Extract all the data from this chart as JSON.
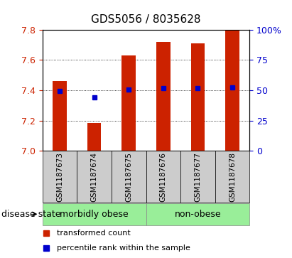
{
  "title": "GDS5056 / 8035628",
  "samples": [
    "GSM1187673",
    "GSM1187674",
    "GSM1187675",
    "GSM1187676",
    "GSM1187677",
    "GSM1187678"
  ],
  "bar_values": [
    7.46,
    7.185,
    7.63,
    7.72,
    7.71,
    7.8
  ],
  "bar_baseline": 7.0,
  "percentile_values": [
    7.395,
    7.355,
    7.405,
    7.415,
    7.415,
    7.42
  ],
  "bar_color": "#cc2200",
  "percentile_color": "#0000cc",
  "ylim_left": [
    7.0,
    7.8
  ],
  "ylim_right": [
    0,
    100
  ],
  "yticks_left": [
    7.0,
    7.2,
    7.4,
    7.6,
    7.8
  ],
  "yticks_right": [
    0,
    25,
    50,
    75,
    100
  ],
  "ytick_labels_right": [
    "0",
    "25",
    "50",
    "75",
    "100%"
  ],
  "groups": [
    {
      "label": "morbidly obese",
      "start": 0,
      "end": 2,
      "color": "#99ee99"
    },
    {
      "label": "non-obese",
      "start": 3,
      "end": 5,
      "color": "#99ee99"
    }
  ],
  "legend_items": [
    {
      "label": "transformed count",
      "color": "#cc2200"
    },
    {
      "label": "percentile rank within the sample",
      "color": "#0000cc"
    }
  ],
  "background_color": "#ffffff",
  "plot_bg_color": "#ffffff",
  "tick_label_color_left": "#cc2200",
  "tick_label_color_right": "#0000cc",
  "title_fontsize": 11,
  "tick_fontsize": 9,
  "bar_width": 0.4,
  "sample_bg_color": "#cccccc",
  "sample_label_fontsize": 7.5,
  "group_label_fontsize": 9,
  "legend_fontsize": 8,
  "disease_state_fontsize": 9
}
